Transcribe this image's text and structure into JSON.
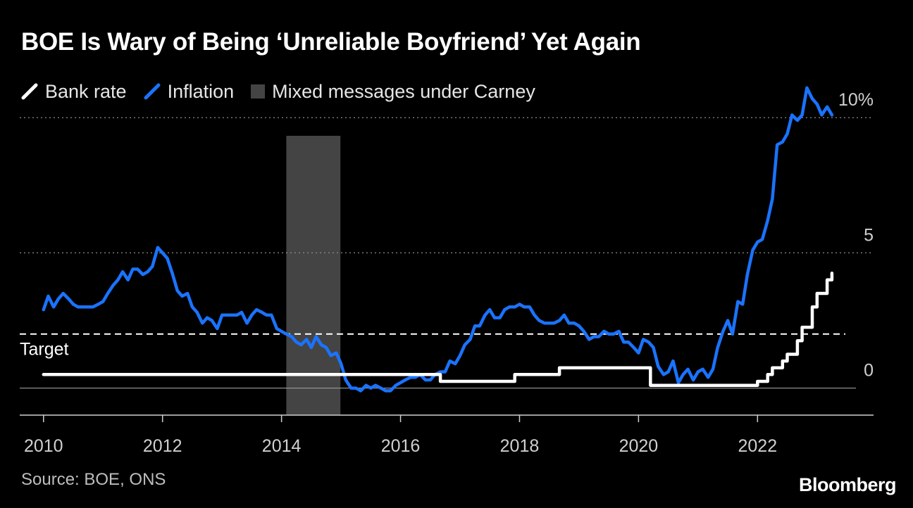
{
  "title": "BOE Is Wary of Being ‘Unreliable Boyfriend’ Yet Again",
  "legend": {
    "bank_rate": "Bank rate",
    "inflation": "Inflation",
    "carney": "Mixed messages under Carney"
  },
  "source": "Source: BOE, ONS",
  "brand": "Bloomberg",
  "colors": {
    "bank_rate": "#ffffff",
    "inflation": "#1a73ff",
    "shade": "#444444",
    "grid": "#8c8c8c"
  },
  "chart_data": {
    "type": "line",
    "xlim": [
      2009.6,
      2023.95
    ],
    "ylim": [
      -1.0,
      10.5
    ],
    "y_ticks": [
      {
        "value": 10,
        "label": "10%"
      },
      {
        "value": 5,
        "label": "5"
      },
      {
        "value": 0,
        "label": "0"
      }
    ],
    "x_ticks": [
      {
        "value": 2010,
        "label": "2010"
      },
      {
        "value": 2012,
        "label": "2012"
      },
      {
        "value": 2014,
        "label": "2014"
      },
      {
        "value": 2016,
        "label": "2016"
      },
      {
        "value": 2018,
        "label": "2018"
      },
      {
        "value": 2020,
        "label": "2020"
      },
      {
        "value": 2022,
        "label": "2022"
      }
    ],
    "target": {
      "value": 2.0,
      "label": "Target"
    },
    "shaded_region": {
      "start": 2014.08,
      "end": 2014.99,
      "label": "Mixed messages under Carney"
    },
    "series": [
      {
        "name": "Inflation",
        "points": [
          [
            2010.0,
            2.9
          ],
          [
            2010.08,
            3.4
          ],
          [
            2010.17,
            3.0
          ],
          [
            2010.25,
            3.3
          ],
          [
            2010.33,
            3.5
          ],
          [
            2010.42,
            3.3
          ],
          [
            2010.5,
            3.1
          ],
          [
            2010.58,
            3.0
          ],
          [
            2010.67,
            3.0
          ],
          [
            2010.75,
            3.0
          ],
          [
            2010.83,
            3.0
          ],
          [
            2010.92,
            3.1
          ],
          [
            2011.0,
            3.2
          ],
          [
            2011.08,
            3.5
          ],
          [
            2011.17,
            3.8
          ],
          [
            2011.25,
            4.0
          ],
          [
            2011.33,
            4.3
          ],
          [
            2011.42,
            4.0
          ],
          [
            2011.5,
            4.4
          ],
          [
            2011.58,
            4.4
          ],
          [
            2011.67,
            4.2
          ],
          [
            2011.75,
            4.3
          ],
          [
            2011.83,
            4.5
          ],
          [
            2011.92,
            5.2
          ],
          [
            2012.0,
            5.0
          ],
          [
            2012.08,
            4.8
          ],
          [
            2012.17,
            4.2
          ],
          [
            2012.25,
            3.6
          ],
          [
            2012.33,
            3.4
          ],
          [
            2012.42,
            3.5
          ],
          [
            2012.5,
            3.0
          ],
          [
            2012.58,
            2.8
          ],
          [
            2012.67,
            2.4
          ],
          [
            2012.75,
            2.6
          ],
          [
            2012.83,
            2.5
          ],
          [
            2012.92,
            2.2
          ],
          [
            2013.0,
            2.7
          ],
          [
            2013.08,
            2.7
          ],
          [
            2013.17,
            2.7
          ],
          [
            2013.25,
            2.7
          ],
          [
            2013.33,
            2.8
          ],
          [
            2013.42,
            2.4
          ],
          [
            2013.5,
            2.7
          ],
          [
            2013.58,
            2.9
          ],
          [
            2013.67,
            2.8
          ],
          [
            2013.75,
            2.7
          ],
          [
            2013.83,
            2.7
          ],
          [
            2013.92,
            2.2
          ],
          [
            2014.0,
            2.1
          ],
          [
            2014.08,
            2.0
          ],
          [
            2014.17,
            1.9
          ],
          [
            2014.25,
            1.7
          ],
          [
            2014.33,
            1.6
          ],
          [
            2014.42,
            1.8
          ],
          [
            2014.5,
            1.5
          ],
          [
            2014.58,
            1.9
          ],
          [
            2014.67,
            1.6
          ],
          [
            2014.75,
            1.5
          ],
          [
            2014.83,
            1.2
          ],
          [
            2014.92,
            1.3
          ],
          [
            2015.0,
            0.9
          ],
          [
            2015.08,
            0.3
          ],
          [
            2015.17,
            0.0
          ],
          [
            2015.25,
            0.0
          ],
          [
            2015.33,
            -0.1
          ],
          [
            2015.42,
            0.1
          ],
          [
            2015.5,
            0.0
          ],
          [
            2015.58,
            0.1
          ],
          [
            2015.67,
            0.0
          ],
          [
            2015.75,
            -0.1
          ],
          [
            2015.83,
            -0.1
          ],
          [
            2015.92,
            0.1
          ],
          [
            2016.0,
            0.2
          ],
          [
            2016.08,
            0.3
          ],
          [
            2016.17,
            0.4
          ],
          [
            2016.25,
            0.4
          ],
          [
            2016.33,
            0.5
          ],
          [
            2016.42,
            0.3
          ],
          [
            2016.5,
            0.3
          ],
          [
            2016.58,
            0.5
          ],
          [
            2016.67,
            0.6
          ],
          [
            2016.75,
            0.6
          ],
          [
            2016.83,
            1.0
          ],
          [
            2016.92,
            0.9
          ],
          [
            2017.0,
            1.2
          ],
          [
            2017.08,
            1.6
          ],
          [
            2017.17,
            1.8
          ],
          [
            2017.25,
            2.3
          ],
          [
            2017.33,
            2.3
          ],
          [
            2017.42,
            2.7
          ],
          [
            2017.5,
            2.9
          ],
          [
            2017.58,
            2.6
          ],
          [
            2017.67,
            2.6
          ],
          [
            2017.75,
            2.9
          ],
          [
            2017.83,
            3.0
          ],
          [
            2017.92,
            3.0
          ],
          [
            2018.0,
            3.1
          ],
          [
            2018.08,
            3.0
          ],
          [
            2018.17,
            3.0
          ],
          [
            2018.25,
            2.7
          ],
          [
            2018.33,
            2.5
          ],
          [
            2018.42,
            2.4
          ],
          [
            2018.5,
            2.4
          ],
          [
            2018.58,
            2.4
          ],
          [
            2018.67,
            2.5
          ],
          [
            2018.75,
            2.7
          ],
          [
            2018.83,
            2.4
          ],
          [
            2018.92,
            2.4
          ],
          [
            2019.0,
            2.3
          ],
          [
            2019.08,
            2.1
          ],
          [
            2019.17,
            1.8
          ],
          [
            2019.25,
            1.9
          ],
          [
            2019.33,
            1.9
          ],
          [
            2019.42,
            2.1
          ],
          [
            2019.5,
            2.0
          ],
          [
            2019.58,
            2.0
          ],
          [
            2019.67,
            2.1
          ],
          [
            2019.75,
            1.7
          ],
          [
            2019.83,
            1.7
          ],
          [
            2019.92,
            1.5
          ],
          [
            2020.0,
            1.3
          ],
          [
            2020.08,
            1.8
          ],
          [
            2020.17,
            1.7
          ],
          [
            2020.25,
            1.5
          ],
          [
            2020.33,
            0.8
          ],
          [
            2020.42,
            0.5
          ],
          [
            2020.5,
            0.6
          ],
          [
            2020.58,
            1.0
          ],
          [
            2020.67,
            0.2
          ],
          [
            2020.75,
            0.5
          ],
          [
            2020.83,
            0.7
          ],
          [
            2020.92,
            0.3
          ],
          [
            2021.0,
            0.6
          ],
          [
            2021.08,
            0.7
          ],
          [
            2021.17,
            0.4
          ],
          [
            2021.25,
            0.7
          ],
          [
            2021.33,
            1.5
          ],
          [
            2021.42,
            2.1
          ],
          [
            2021.5,
            2.5
          ],
          [
            2021.58,
            2.0
          ],
          [
            2021.67,
            3.2
          ],
          [
            2021.75,
            3.1
          ],
          [
            2021.83,
            4.2
          ],
          [
            2021.92,
            5.1
          ],
          [
            2022.0,
            5.4
          ],
          [
            2022.08,
            5.5
          ],
          [
            2022.17,
            6.2
          ],
          [
            2022.25,
            7.0
          ],
          [
            2022.33,
            9.0
          ],
          [
            2022.42,
            9.1
          ],
          [
            2022.5,
            9.4
          ],
          [
            2022.58,
            10.1
          ],
          [
            2022.67,
            9.9
          ],
          [
            2022.75,
            10.1
          ],
          [
            2022.83,
            11.1
          ],
          [
            2022.92,
            10.7
          ],
          [
            2023.0,
            10.5
          ],
          [
            2023.08,
            10.1
          ],
          [
            2023.17,
            10.4
          ],
          [
            2023.25,
            10.1
          ]
        ]
      },
      {
        "name": "Bank rate",
        "points": [
          [
            2010.0,
            0.5
          ],
          [
            2016.58,
            0.5
          ],
          [
            2016.67,
            0.25
          ],
          [
            2017.83,
            0.25
          ],
          [
            2017.92,
            0.5
          ],
          [
            2018.58,
            0.5
          ],
          [
            2018.67,
            0.75
          ],
          [
            2020.17,
            0.75
          ],
          [
            2020.2,
            0.1
          ],
          [
            2021.92,
            0.1
          ],
          [
            2022.0,
            0.25
          ],
          [
            2022.08,
            0.25
          ],
          [
            2022.17,
            0.5
          ],
          [
            2022.25,
            0.75
          ],
          [
            2022.33,
            0.75
          ],
          [
            2022.42,
            1.0
          ],
          [
            2022.5,
            1.25
          ],
          [
            2022.58,
            1.25
          ],
          [
            2022.67,
            1.75
          ],
          [
            2022.75,
            2.25
          ],
          [
            2022.83,
            2.25
          ],
          [
            2022.92,
            3.0
          ],
          [
            2023.0,
            3.5
          ],
          [
            2023.08,
            3.5
          ],
          [
            2023.17,
            4.0
          ],
          [
            2023.25,
            4.25
          ]
        ]
      }
    ]
  }
}
